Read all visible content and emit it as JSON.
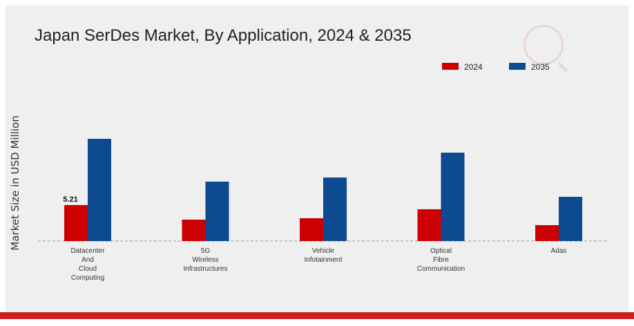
{
  "chart_data": {
    "type": "bar",
    "title": "Japan SerDes Market, By Application, 2024 & 2035",
    "ylabel": "Market Size in USD Million",
    "xlabel": "",
    "categories": [
      "Datacenter And Cloud Computing",
      "5G Wireless Infrastructures",
      "Vehicle Infotainment",
      "Optical Fibre Communication",
      "Adas"
    ],
    "category_lines": [
      [
        "Datacenter",
        "And",
        "Cloud",
        "Computing"
      ],
      [
        "5G",
        "Wireless",
        "Infrastructures"
      ],
      [
        "Vehicle",
        "Infotainment"
      ],
      [
        "Optical",
        "Fibre",
        "Communication"
      ],
      [
        "Adas"
      ]
    ],
    "series": [
      {
        "name": "2024",
        "color": "#cc0000",
        "values": [
          5.21,
          3.1,
          3.3,
          4.6,
          2.3
        ]
      },
      {
        "name": "2035",
        "color": "#0d4a8f",
        "values": [
          14.8,
          8.6,
          9.2,
          12.8,
          6.4
        ]
      }
    ],
    "data_labels": [
      {
        "series": 0,
        "index": 0,
        "text": "5.21"
      }
    ],
    "ylim": [
      0,
      20
    ],
    "grid": false,
    "legend_position": "top-right",
    "baseline": "dashed"
  }
}
